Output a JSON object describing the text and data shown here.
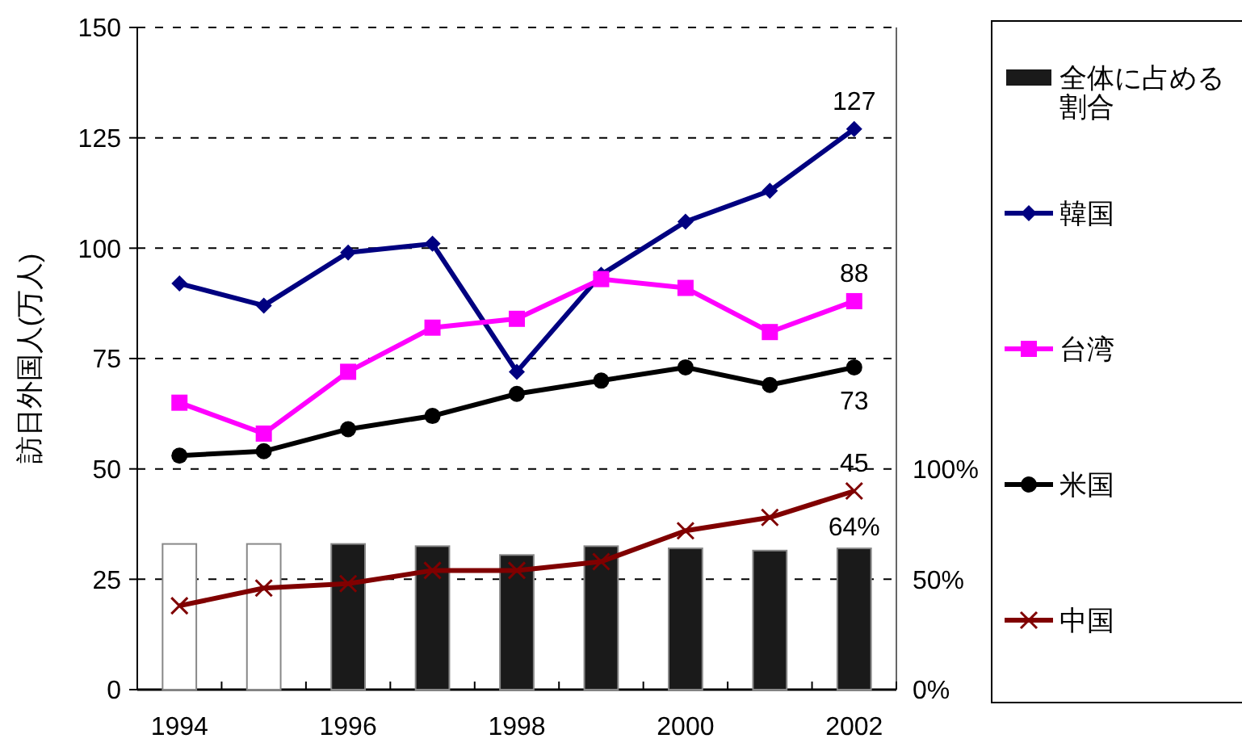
{
  "chart_data": {
    "type": "line",
    "ylabel": "訪日外国人(万人)",
    "categories": [
      "1994",
      null,
      "1996",
      null,
      "1998",
      null,
      "2000",
      null,
      "2002"
    ],
    "ylim": [
      0,
      150
    ],
    "yticks": [
      0,
      25,
      50,
      75,
      100,
      125,
      150
    ],
    "y2lim": [
      0,
      300
    ],
    "y2ticks": [
      {
        "value": 0,
        "label": "0%"
      },
      {
        "value": 50,
        "label": "50%"
      },
      {
        "value": 100,
        "label": "100%"
      }
    ],
    "grid": "y",
    "legend": "right",
    "line_style": "solid",
    "series": [
      {
        "name": "全体に占める割合",
        "type": "bar",
        "axis": "y2",
        "color": "#1a1a1a",
        "colors": [
          "#ffffff",
          "#ffffff",
          "#1a1a1a",
          "#1a1a1a",
          "#1a1a1a",
          "#1a1a1a",
          "#1a1a1a",
          "#1a1a1a",
          "#1a1a1a"
        ],
        "values": [
          66,
          66,
          66,
          65,
          61,
          65,
          64,
          63,
          64
        ],
        "value_labels": [
          null,
          null,
          null,
          null,
          null,
          null,
          null,
          null,
          "64%"
        ]
      },
      {
        "name": "韓国",
        "color": "#000080",
        "marker": "diamond",
        "values": [
          92,
          87,
          99,
          101,
          72,
          94,
          106,
          113,
          127
        ],
        "value_labels": [
          null,
          null,
          null,
          null,
          null,
          null,
          null,
          null,
          "127"
        ]
      },
      {
        "name": "台湾",
        "color": "#ff00ff",
        "marker": "square",
        "values": [
          65,
          58,
          72,
          82,
          84,
          93,
          91,
          81,
          88
        ],
        "value_labels": [
          null,
          null,
          null,
          null,
          null,
          null,
          null,
          null,
          "88"
        ]
      },
      {
        "name": "米国",
        "color": "#000000",
        "marker": "circle",
        "values": [
          53,
          54,
          59,
          62,
          67,
          70,
          73,
          69,
          73
        ],
        "value_labels": [
          null,
          null,
          null,
          null,
          null,
          null,
          null,
          null,
          "73"
        ]
      },
      {
        "name": "中国",
        "color": "#800000",
        "marker": "cross",
        "values": [
          19,
          23,
          24,
          27,
          27,
          29,
          36,
          39,
          45
        ],
        "value_labels": [
          null,
          null,
          null,
          null,
          null,
          null,
          null,
          null,
          "45"
        ]
      }
    ]
  }
}
